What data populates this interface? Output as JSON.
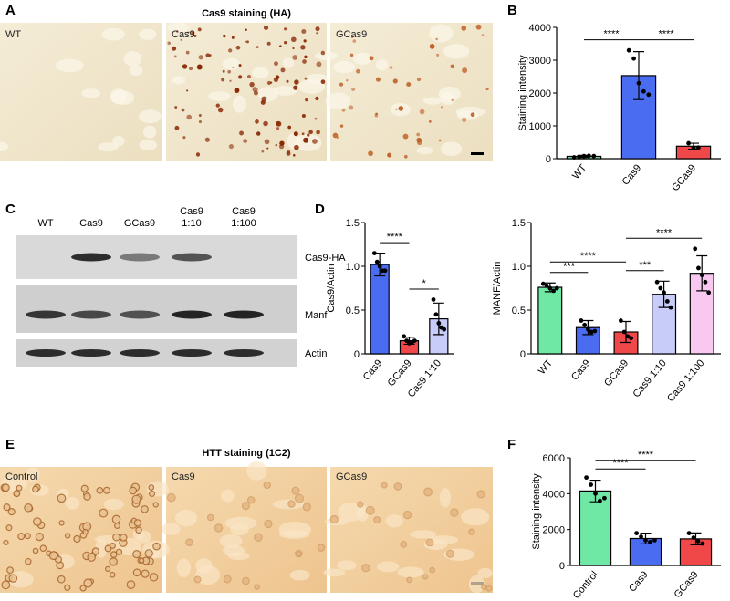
{
  "figure": {
    "panels": [
      "A",
      "B",
      "C",
      "D",
      "E",
      "F"
    ],
    "a": {
      "title": "Cas9 staining (HA)",
      "images": [
        "WT",
        "Cas9",
        "GCas9"
      ]
    },
    "c": {
      "lanes": [
        [
          "WT"
        ],
        [
          "Cas9"
        ],
        [
          "GCas9"
        ],
        [
          "Cas9",
          "1:10"
        ],
        [
          "Cas9",
          "1:100"
        ]
      ],
      "rows": [
        "Cas9-HA",
        "Manf",
        "Actin"
      ]
    },
    "e": {
      "title": "HTT staining (1C2)",
      "images": [
        "Control",
        "Cas9",
        "GCas9"
      ]
    }
  },
  "chart_data": [
    {
      "type": "bar",
      "y_label": "Staining intensity",
      "categories": [
        "WT",
        "Cas9",
        "GCas9"
      ],
      "values": [
        70,
        2530,
        380
      ],
      "errors": [
        30,
        730,
        90
      ],
      "points": [
        [
          40,
          60,
          80,
          90,
          80
        ],
        [
          3300,
          3050,
          2300,
          2050,
          1950
        ],
        [
          470,
          330,
          340
        ]
      ],
      "colors": [
        "#6ee8a4",
        "#4a6cf0",
        "#f04848"
      ],
      "ylim": [
        0,
        4000
      ],
      "yticks": [
        0,
        1000,
        2000,
        3000,
        4000
      ],
      "comparisons": [
        {
          "pair": [
            "WT",
            "Cas9"
          ],
          "label": "****"
        },
        {
          "pair": [
            "Cas9",
            "GCas9"
          ],
          "label": "****"
        }
      ]
    },
    {
      "type": "bar",
      "y_label": "Cas9/Actin",
      "categories": [
        "Cas9",
        "GCas9",
        "Cas9 1:10"
      ],
      "values": [
        1.02,
        0.15,
        0.4
      ],
      "errors": [
        0.13,
        0.04,
        0.18
      ],
      "points": [
        [
          1.15,
          1.05,
          1.0,
          0.95,
          0.95
        ],
        [
          0.2,
          0.15,
          0.12,
          0.13,
          0.15
        ],
        [
          0.62,
          0.45,
          0.35,
          0.3,
          0.28
        ]
      ],
      "colors": [
        "#4a6cf0",
        "#f04848",
        "#c8ccf8"
      ],
      "ylim": [
        0,
        1.5
      ],
      "yticks": [
        0,
        0.5,
        {
          "value": 1,
          "label": "1.0"
        },
        1.5
      ],
      "comparisons": [
        {
          "pair": [
            "Cas9",
            "GCas9"
          ],
          "label": "****"
        },
        {
          "pair": [
            "GCas9",
            "Cas9 1:10"
          ],
          "label": "*"
        }
      ]
    },
    {
      "type": "bar",
      "y_label": "MANF/Actin",
      "categories": [
        "WT",
        "Cas9",
        "GCas9",
        "Cas9 1:10",
        "Cas9 1:100"
      ],
      "values": [
        0.76,
        0.3,
        0.25,
        0.68,
        0.92
      ],
      "errors": [
        0.05,
        0.08,
        0.12,
        0.15,
        0.2
      ],
      "points": [
        [
          0.8,
          0.78,
          0.75,
          0.72,
          0.75
        ],
        [
          0.38,
          0.33,
          0.28,
          0.25,
          0.26
        ],
        [
          0.38,
          0.25,
          0.2,
          0.18
        ],
        [
          0.82,
          0.75,
          0.7,
          0.6,
          0.53
        ],
        [
          1.2,
          0.98,
          0.9,
          0.82,
          0.7
        ]
      ],
      "colors": [
        "#6ee8a4",
        "#4a6cf0",
        "#f04848",
        "#c8ccf8",
        "#f8c8f0"
      ],
      "ylim": [
        0,
        1.5
      ],
      "yticks": [
        0,
        0.5,
        {
          "value": 1,
          "label": "1.0"
        },
        1.5
      ],
      "comparisons": [
        {
          "pair": [
            "WT",
            "Cas9"
          ],
          "label": "***"
        },
        {
          "pair": [
            "WT",
            "GCas9"
          ],
          "label": "****"
        },
        {
          "pair": [
            "GCas9",
            "Cas9 1:10"
          ],
          "label": "***"
        },
        {
          "pair": [
            "GCas9",
            "Cas9 1:100"
          ],
          "label": "****"
        }
      ]
    },
    {
      "type": "bar",
      "y_label": "Staining intensity",
      "categories": [
        "Control",
        "Cas9",
        "GCas9"
      ],
      "values": [
        4150,
        1500,
        1480
      ],
      "errors": [
        600,
        300,
        330
      ],
      "points": [
        [
          4900,
          4500,
          4000,
          3600,
          3750
        ],
        [
          1800,
          1600,
          1400,
          1300,
          1400
        ],
        [
          1800,
          1550,
          1350,
          1220
        ]
      ],
      "colors": [
        "#6ee8a4",
        "#4a6cf0",
        "#f04848"
      ],
      "ylim": [
        0,
        6000
      ],
      "yticks": [
        0,
        2000,
        4000,
        6000
      ],
      "comparisons": [
        {
          "pair": [
            "Control",
            "Cas9"
          ],
          "label": "****"
        },
        {
          "pair": [
            "Control",
            "GCas9"
          ],
          "label": "****"
        }
      ]
    }
  ]
}
